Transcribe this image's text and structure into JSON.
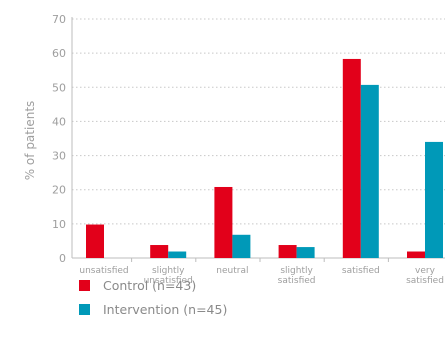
{
  "chart_data": {
    "type": "bar",
    "categories": [
      [
        "unsatisfied"
      ],
      [
        "slightly",
        "unsatisfied"
      ],
      [
        "neutral"
      ],
      [
        "slightly",
        "satisfied"
      ],
      [
        "satisfied"
      ],
      [
        "very",
        "satisfied"
      ]
    ],
    "series": [
      {
        "name": "Control (n=43)",
        "values": [
          9.8,
          3.8,
          20.8,
          3.8,
          58.3,
          1.9
        ],
        "color": "#e2001a"
      },
      {
        "name": "Intervention (n=45)",
        "values": [
          0,
          1.9,
          6.8,
          3.2,
          50.7,
          34.0
        ],
        "color": "#0099b8"
      }
    ],
    "title": "",
    "xlabel": "",
    "ylabel": "% of patients",
    "ylim": [
      0,
      70
    ],
    "yticks": [
      0,
      10,
      20,
      30,
      40,
      50,
      60,
      70
    ],
    "grid": true,
    "legend_position": "bottom-left"
  }
}
